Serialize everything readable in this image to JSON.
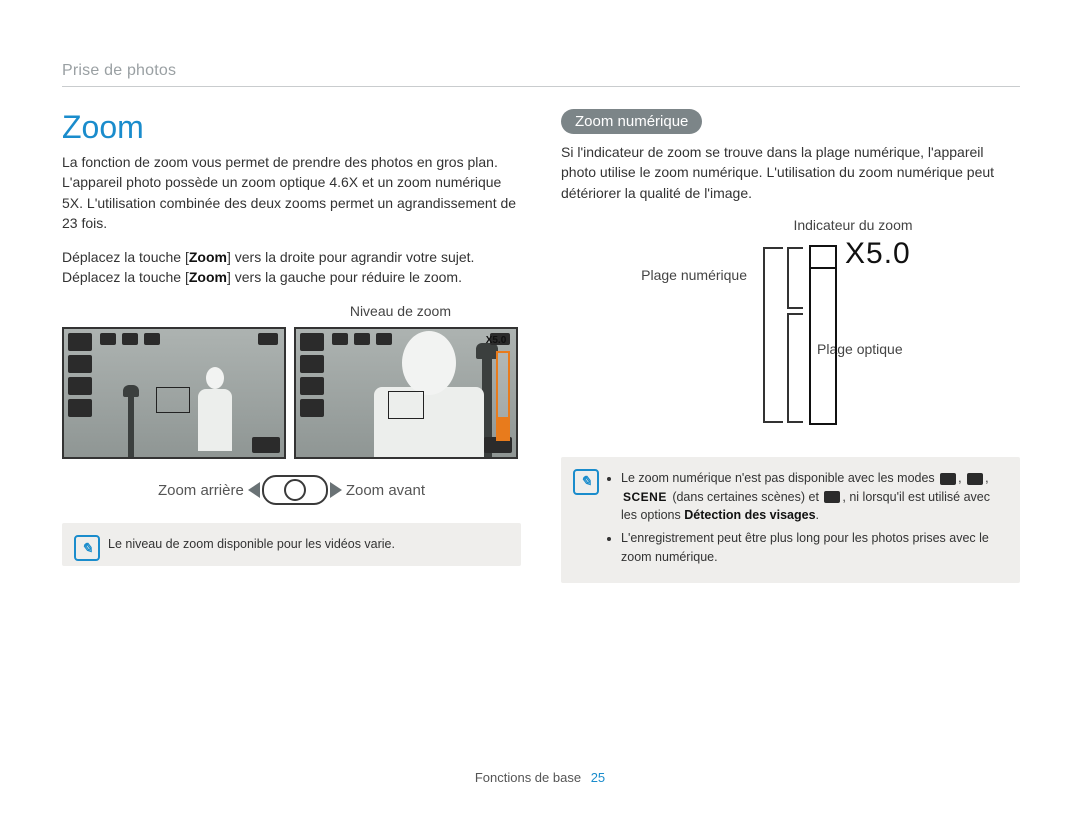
{
  "breadcrumb": "Prise de photos",
  "left": {
    "title": "Zoom",
    "p1": "La fonction de zoom vous permet de prendre des photos en gros plan. L'appareil photo possède un zoom optique 4.6X et un zoom numérique 5X. L'utilisation combinée des deux zooms permet un agrandissement de 23 fois.",
    "p2a": "Déplacez la touche [",
    "p2b": "] vers la droite pour agrandir votre sujet. Déplacez la touche [",
    "p2c": "] vers la gauche pour réduire le zoom.",
    "zoom_word": "Zoom",
    "niveau": "Niveau de zoom",
    "zoom_out": "Zoom arrière",
    "zoom_in": "Zoom avant",
    "x_marker": "X5.0",
    "note": "Le niveau de zoom disponible pour les vidéos varie."
  },
  "right": {
    "pill": "Zoom numérique",
    "p1": "Si l'indicateur de zoom se trouve dans la plage numérique, l'appareil photo utilise le zoom numérique. L'utilisation du zoom numérique peut détériorer la qualité de l'image.",
    "lbl_indicator": "Indicateur du zoom",
    "lbl_digital": "Plage numérique",
    "lbl_optical": "Plage optique",
    "x5": "X5.0",
    "note1a": "Le zoom numérique n'est pas disponible avec les modes ",
    "note1_scene": "SCENE",
    "note1b": " (dans certaines scènes) et ",
    "note1c": ", ni lorsqu'il est utilisé avec les options ",
    "note1_bold": "Détection des visages",
    "note2": "L'enregistrement peut être plus long pour les photos prises avec le zoom numérique."
  },
  "footer": {
    "label": "Fonctions de base",
    "page": "25"
  },
  "colors": {
    "accent_blue": "#1a8ccc",
    "accent_orange": "#e87b1c",
    "pill_bg": "#7c8588",
    "note_bg": "#efeeec",
    "text": "#3a3a3a"
  }
}
